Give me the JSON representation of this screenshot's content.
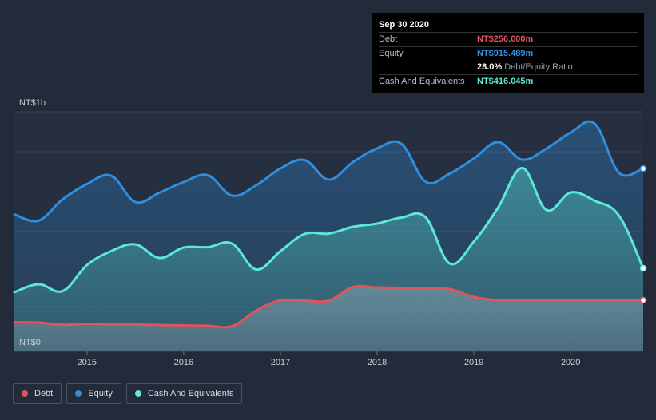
{
  "chart_data": {
    "type": "area",
    "y_axis_labels": {
      "top": "NT$1b",
      "bottom": "NT$0"
    },
    "ylim": [
      0,
      1200
    ],
    "xlim": [
      2014.25,
      2020.75
    ],
    "x_ticks": [
      {
        "value": 2015,
        "label": "2015"
      },
      {
        "value": 2016,
        "label": "2016"
      },
      {
        "value": 2017,
        "label": "2017"
      },
      {
        "value": 2018,
        "label": "2018"
      },
      {
        "value": 2019,
        "label": "2019"
      },
      {
        "value": 2020,
        "label": "2020"
      }
    ],
    "series": [
      {
        "key": "equity",
        "name": "Equity",
        "color": "#2f8fde",
        "points": [
          [
            2014.25,
            686
          ],
          [
            2014.5,
            655
          ],
          [
            2014.75,
            762
          ],
          [
            2015.0,
            838
          ],
          [
            2015.25,
            880
          ],
          [
            2015.5,
            748
          ],
          [
            2015.75,
            795
          ],
          [
            2016.0,
            848
          ],
          [
            2016.25,
            882
          ],
          [
            2016.5,
            780
          ],
          [
            2016.75,
            832
          ],
          [
            2017.0,
            916
          ],
          [
            2017.25,
            958
          ],
          [
            2017.5,
            860
          ],
          [
            2017.75,
            948
          ],
          [
            2018.0,
            1017
          ],
          [
            2018.25,
            1040
          ],
          [
            2018.5,
            850
          ],
          [
            2018.75,
            890
          ],
          [
            2019.0,
            966
          ],
          [
            2019.25,
            1048
          ],
          [
            2019.5,
            960
          ],
          [
            2019.75,
            1016
          ],
          [
            2020.0,
            1096
          ],
          [
            2020.25,
            1140
          ],
          [
            2020.5,
            895
          ],
          [
            2020.75,
            915.489
          ]
        ]
      },
      {
        "key": "cash",
        "name": "Cash And Equivalents",
        "color": "#5ce8d6",
        "points": [
          [
            2014.25,
            296
          ],
          [
            2014.5,
            336
          ],
          [
            2014.75,
            302
          ],
          [
            2015.0,
            432
          ],
          [
            2015.25,
            502
          ],
          [
            2015.5,
            536
          ],
          [
            2015.75,
            468
          ],
          [
            2016.0,
            520
          ],
          [
            2016.25,
            522
          ],
          [
            2016.5,
            540
          ],
          [
            2016.75,
            410
          ],
          [
            2017.0,
            502
          ],
          [
            2017.25,
            588
          ],
          [
            2017.5,
            590
          ],
          [
            2017.75,
            624
          ],
          [
            2018.0,
            640
          ],
          [
            2018.25,
            670
          ],
          [
            2018.5,
            672
          ],
          [
            2018.75,
            440
          ],
          [
            2019.0,
            550
          ],
          [
            2019.25,
            720
          ],
          [
            2019.5,
            918
          ],
          [
            2019.75,
            708
          ],
          [
            2020.0,
            796
          ],
          [
            2020.25,
            754
          ],
          [
            2020.5,
            680
          ],
          [
            2020.75,
            416.045
          ]
        ]
      },
      {
        "key": "debt",
        "name": "Debt",
        "color": "#e0545c",
        "points": [
          [
            2014.25,
            146
          ],
          [
            2014.5,
            144
          ],
          [
            2014.75,
            133
          ],
          [
            2015.0,
            138
          ],
          [
            2015.25,
            136
          ],
          [
            2015.5,
            134
          ],
          [
            2015.75,
            132
          ],
          [
            2016.0,
            130
          ],
          [
            2016.25,
            128
          ],
          [
            2016.5,
            126
          ],
          [
            2016.75,
            204
          ],
          [
            2017.0,
            256
          ],
          [
            2017.25,
            254
          ],
          [
            2017.5,
            254
          ],
          [
            2017.75,
            322
          ],
          [
            2018.0,
            320
          ],
          [
            2018.25,
            318
          ],
          [
            2018.5,
            316
          ],
          [
            2018.75,
            312
          ],
          [
            2019.0,
            272
          ],
          [
            2019.25,
            256
          ],
          [
            2019.5,
            256
          ],
          [
            2019.75,
            256
          ],
          [
            2020.0,
            256
          ],
          [
            2020.25,
            256
          ],
          [
            2020.5,
            256
          ],
          [
            2020.75,
            256.0
          ]
        ]
      }
    ]
  },
  "tooltip": {
    "date": "Sep 30 2020",
    "debt_label": "Debt",
    "debt_value": "NT$256.000m",
    "equity_label": "Equity",
    "equity_value": "NT$915.489m",
    "ratio_value": "28.0%",
    "ratio_label": "Debt/Equity Ratio",
    "cash_label": "Cash And Equivalents",
    "cash_value": "NT$416.045m",
    "colors": {
      "debt": "#e0545c",
      "equity": "#2f8fde",
      "cash": "#5ce8d6"
    }
  },
  "legend": [
    {
      "key": "debt",
      "label": "Debt",
      "color": "#e0545c"
    },
    {
      "key": "equity",
      "label": "Equity",
      "color": "#2f8fde"
    },
    {
      "key": "cash",
      "label": "Cash And Equivalents",
      "color": "#5ce8d6"
    }
  ]
}
